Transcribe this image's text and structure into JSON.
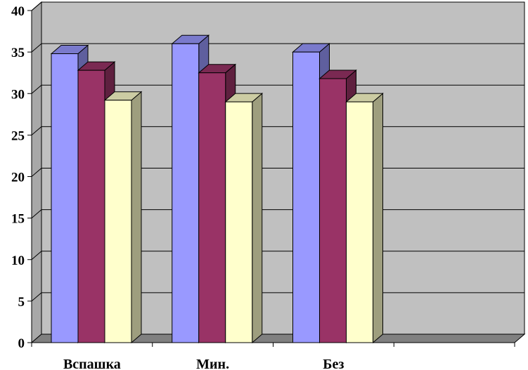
{
  "chart_data": {
    "type": "bar",
    "bar_style": "3d-clustered-column",
    "categories": [
      "Вспашка",
      "Мин.",
      "Без"
    ],
    "empty_slots_after_categories": 1,
    "series": [
      {
        "values": [
          34.8,
          36.0,
          35.0
        ],
        "color": "#9999ff"
      },
      {
        "values": [
          32.8,
          32.5,
          31.8
        ],
        "color": "#993366"
      },
      {
        "values": [
          29.2,
          29.0,
          29.0
        ],
        "color": "#ffffcc"
      }
    ],
    "y_ticks": [
      "0",
      "5",
      "10",
      "15",
      "20",
      "25",
      "30",
      "35",
      "40"
    ],
    "ylim": [
      0,
      40
    ],
    "grid": true,
    "legend": "none",
    "title": "",
    "xlabel": "",
    "ylabel": "",
    "colors": {
      "plot_back_wall": "#c0c0c0",
      "plot_floor": "#808080",
      "gridline": "#000000"
    }
  }
}
